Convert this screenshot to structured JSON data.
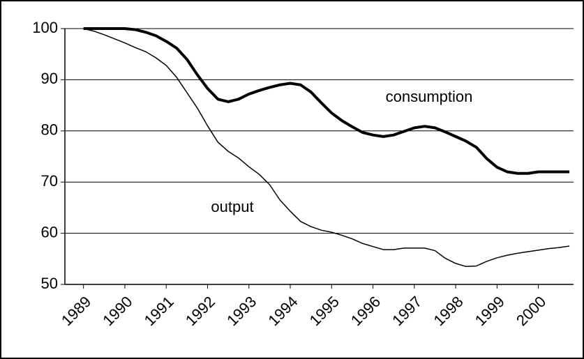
{
  "chart_data": {
    "type": "line",
    "x": [
      1989,
      1989.25,
      1989.5,
      1989.75,
      1990,
      1990.25,
      1990.5,
      1990.75,
      1991,
      1991.25,
      1991.5,
      1991.75,
      1992,
      1992.25,
      1992.5,
      1992.75,
      1993,
      1993.25,
      1993.5,
      1993.75,
      1994,
      1994.25,
      1994.5,
      1994.75,
      1995,
      1995.25,
      1995.5,
      1995.75,
      1996,
      1996.25,
      1996.5,
      1996.75,
      1997,
      1997.25,
      1997.5,
      1997.75,
      1998,
      1998.25,
      1998.5,
      1998.75,
      1999,
      1999.25,
      1999.5,
      1999.75,
      2000,
      2000.25,
      2000.5,
      2000.75
    ],
    "series": [
      {
        "name": "consumption",
        "color": "#000000",
        "width": 4,
        "values": [
          100,
          100,
          100,
          100,
          100,
          99.8,
          99.3,
          98.6,
          97.5,
          96.2,
          94,
          91,
          88.3,
          86.2,
          85.7,
          86.2,
          87.2,
          87.9,
          88.5,
          89,
          89.3,
          89,
          87.6,
          85.5,
          83.5,
          82,
          80.8,
          79.7,
          79.2,
          78.9,
          79.2,
          79.9,
          80.6,
          80.9,
          80.6,
          79.8,
          78.9,
          78,
          76.8,
          74.6,
          72.9,
          72,
          71.7,
          71.7,
          72,
          72,
          72,
          72
        ]
      },
      {
        "name": "output",
        "color": "#000000",
        "width": 1.5,
        "values": [
          100,
          99.5,
          98.8,
          98,
          97.2,
          96.3,
          95.5,
          94.3,
          92.8,
          90.5,
          87.5,
          84.5,
          81,
          77.8,
          76,
          74.7,
          73,
          71.5,
          69.5,
          66.5,
          64.3,
          62.3,
          61.3,
          60.6,
          60.2,
          59.6,
          58.9,
          58,
          57.4,
          56.8,
          56.8,
          57.1,
          57.1,
          57.1,
          56.6,
          55.1,
          54.1,
          53.5,
          53.6,
          54.5,
          55.2,
          55.7,
          56.1,
          56.4,
          56.7,
          57,
          57.2,
          57.5
        ]
      }
    ],
    "xlim": [
      1988.55,
      2000.85
    ],
    "xticks": [
      1989,
      1990,
      1991,
      1992,
      1993,
      1994,
      1995,
      1996,
      1997,
      1998,
      1999,
      2000
    ],
    "ylim": [
      50,
      100
    ],
    "yticks": [
      50,
      60,
      70,
      80,
      90,
      100
    ],
    "grid": true
  }
}
